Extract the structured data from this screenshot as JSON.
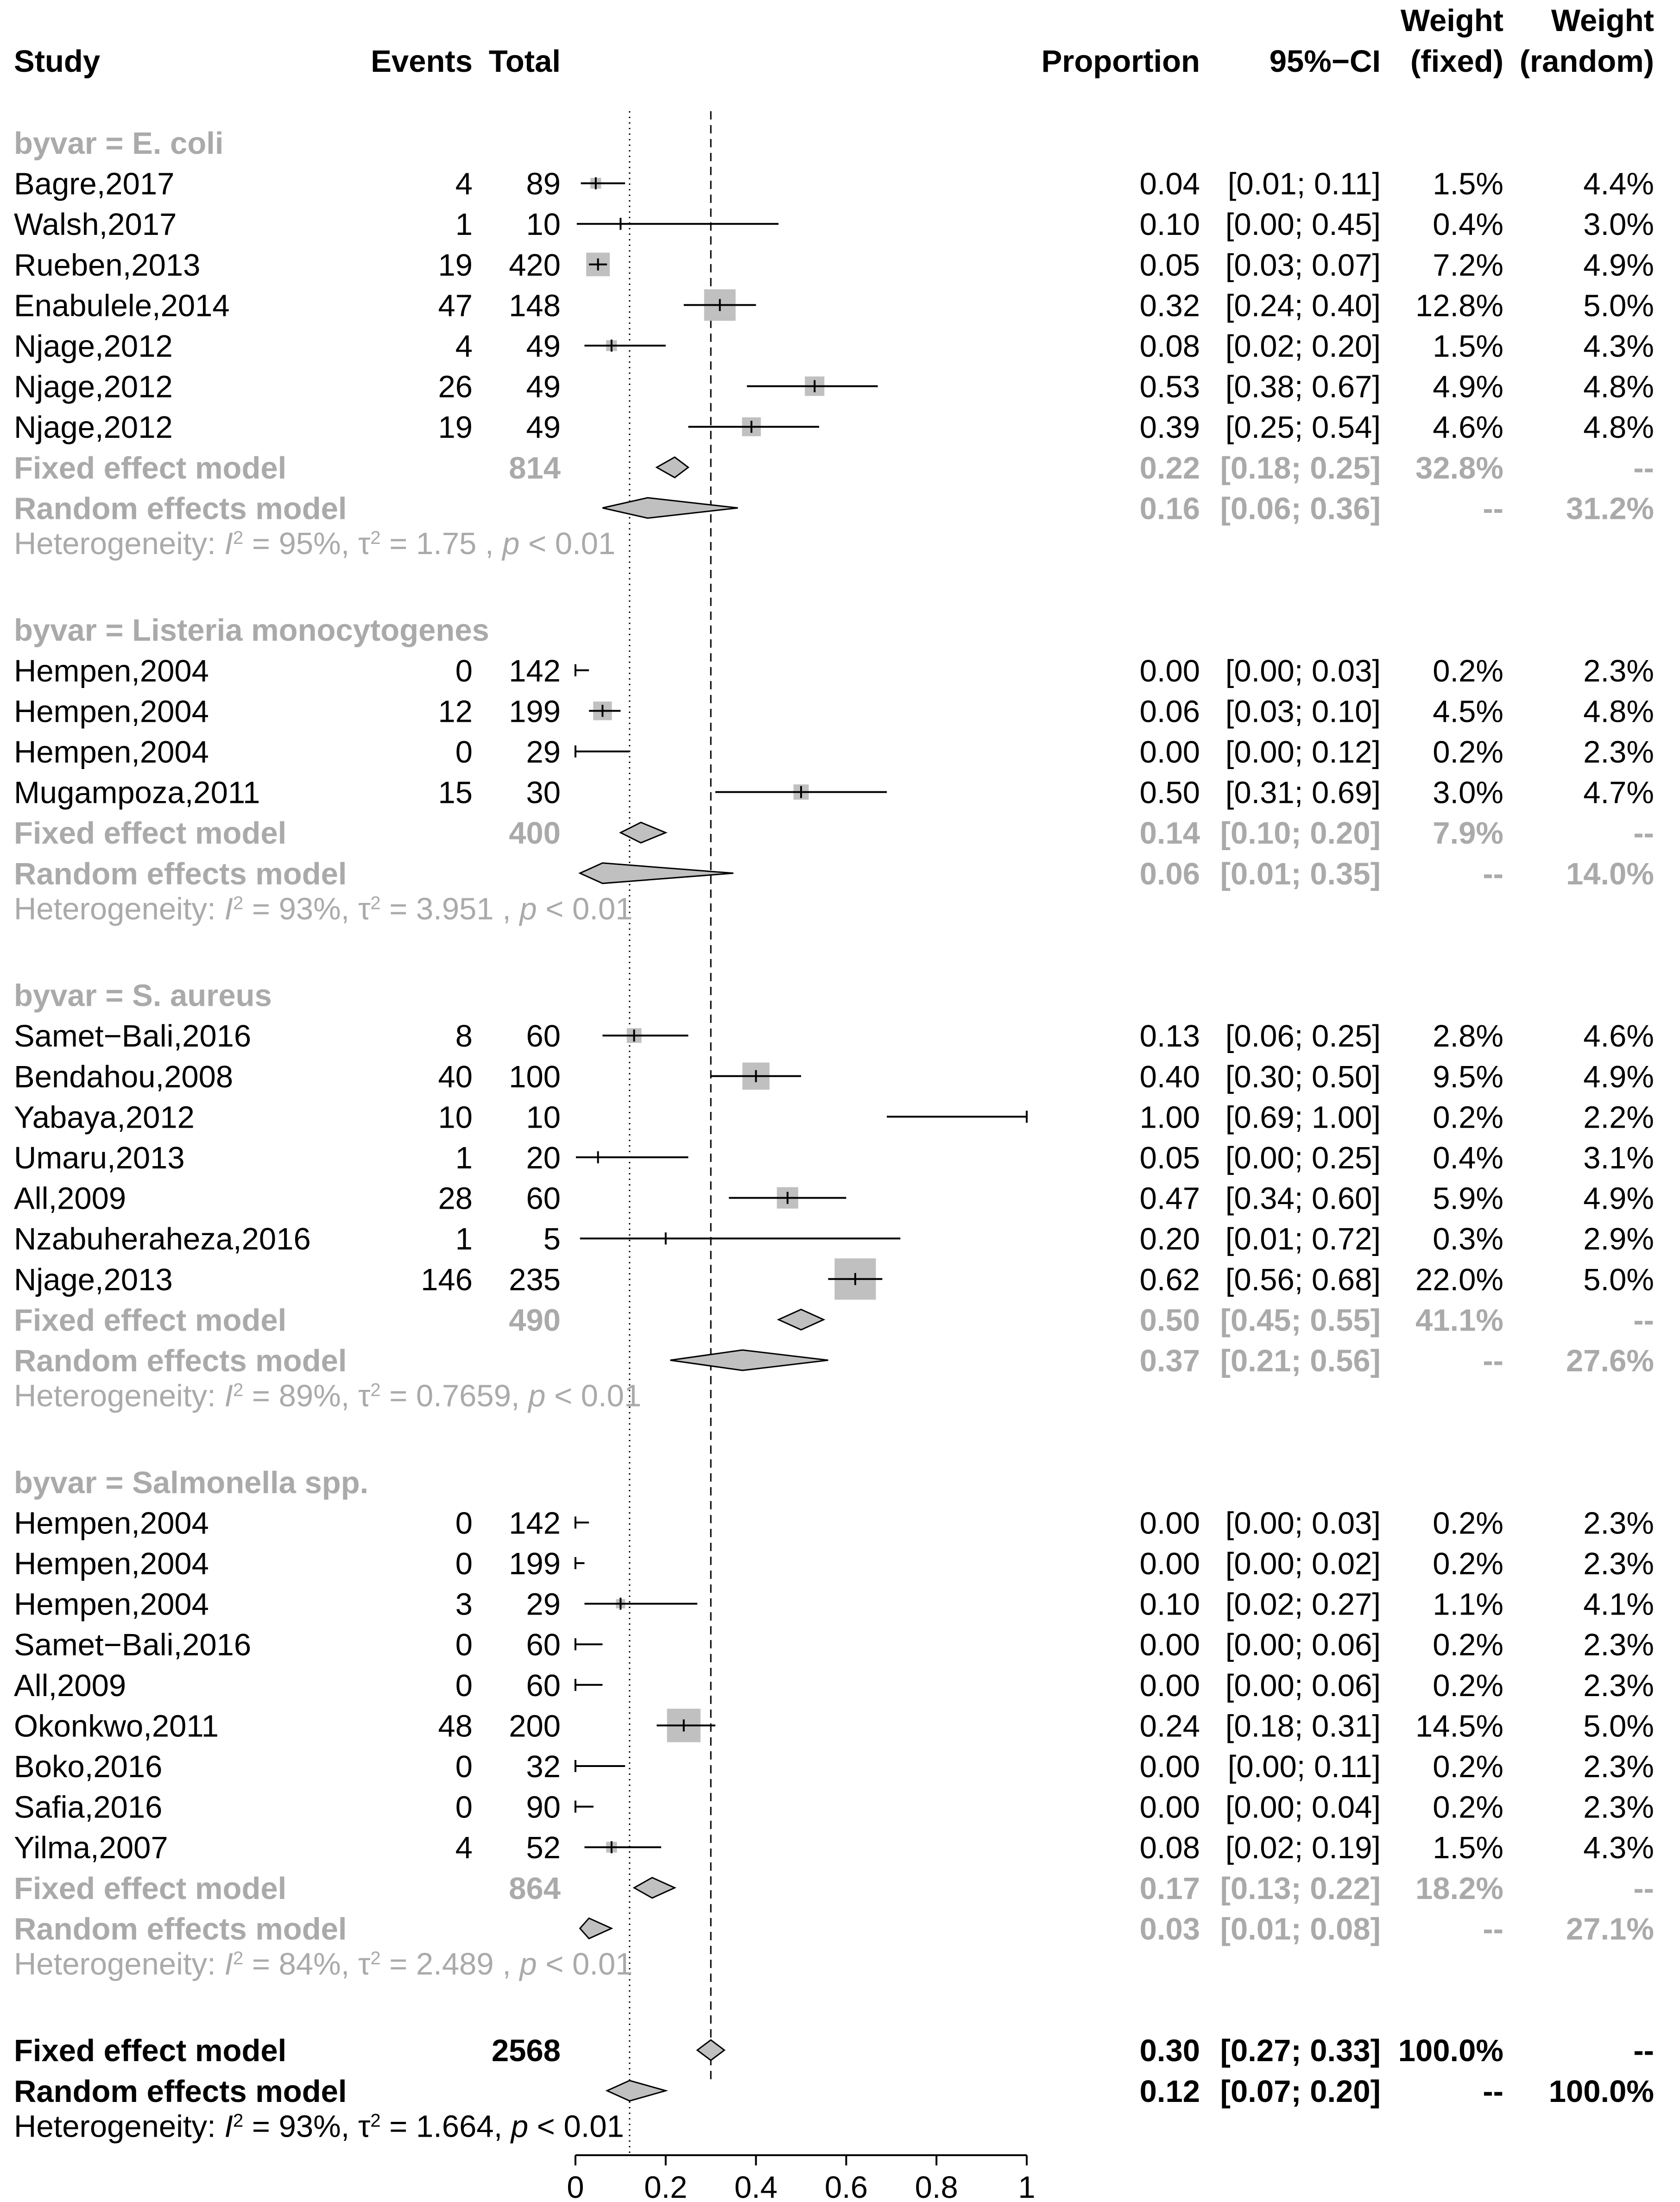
{
  "chart_data": {
    "type": "forest",
    "headers": {
      "study": "Study",
      "events": "Events",
      "total": "Total",
      "proportion": "Proportion",
      "ci": "95%−CI",
      "weight_fixed_1": "Weight",
      "weight_fixed_2": "(fixed)",
      "weight_random_1": "Weight",
      "weight_random_2": "(random)"
    },
    "x_axis": {
      "min": 0,
      "max": 1,
      "ticks": [
        0,
        0.2,
        0.4,
        0.6,
        0.8,
        1
      ],
      "tick_labels": [
        "0",
        "0.2",
        "0.4",
        "0.6",
        "0.8",
        "1"
      ]
    },
    "reference_lines": {
      "fixed_overall": 0.3,
      "random_overall": 0.12
    },
    "colors": {
      "subgroup_text": "#aaaaaa",
      "square": "#c0c0c0",
      "diamond_fill": "#c0c0c0",
      "line": "#000000"
    },
    "groups": [
      {
        "label": "byvar = E. coli",
        "studies": [
          {
            "study": "Bagre,2017",
            "events": "4",
            "total": "89",
            "est": 0.045,
            "lo": 0.012,
            "hi": 0.11,
            "prop": "0.04",
            "ci": "[0.01; 0.11]",
            "wf": "1.5%",
            "wr": "4.4%",
            "weight": 1.5
          },
          {
            "study": "Walsh,2017",
            "events": "1",
            "total": "10",
            "est": 0.1,
            "lo": 0.003,
            "hi": 0.45,
            "prop": "0.10",
            "ci": "[0.00; 0.45]",
            "wf": "0.4%",
            "wr": "3.0%",
            "weight": 0.4
          },
          {
            "study": "Rueben,2013",
            "events": "19",
            "total": "420",
            "est": 0.05,
            "lo": 0.03,
            "hi": 0.07,
            "prop": "0.05",
            "ci": "[0.03; 0.07]",
            "wf": "7.2%",
            "wr": "4.9%",
            "weight": 7.2
          },
          {
            "study": "Enabulele,2014",
            "events": "47",
            "total": "148",
            "est": 0.32,
            "lo": 0.24,
            "hi": 0.4,
            "prop": "0.32",
            "ci": "[0.24; 0.40]",
            "wf": "12.8%",
            "wr": "5.0%",
            "weight": 12.8
          },
          {
            "study": "Njage,2012",
            "events": "4",
            "total": "49",
            "est": 0.08,
            "lo": 0.02,
            "hi": 0.2,
            "prop": "0.08",
            "ci": "[0.02; 0.20]",
            "wf": "1.5%",
            "wr": "4.3%",
            "weight": 1.5
          },
          {
            "study": "Njage,2012",
            "events": "26",
            "total": "49",
            "est": 0.53,
            "lo": 0.38,
            "hi": 0.67,
            "prop": "0.53",
            "ci": "[0.38; 0.67]",
            "wf": "4.9%",
            "wr": "4.8%",
            "weight": 4.9
          },
          {
            "study": "Njage,2012",
            "events": "19",
            "total": "49",
            "est": 0.39,
            "lo": 0.25,
            "hi": 0.54,
            "prop": "0.39",
            "ci": "[0.25; 0.54]",
            "wf": "4.6%",
            "wr": "4.8%",
            "weight": 4.6
          }
        ],
        "fixed": {
          "label": "Fixed effect model",
          "total": "814",
          "est": 0.22,
          "lo": 0.18,
          "hi": 0.25,
          "prop": "0.22",
          "ci": "[0.18; 0.25]",
          "wf": "32.8%",
          "wr": "--"
        },
        "random": {
          "label": "Random effects model",
          "est": 0.16,
          "lo": 0.06,
          "hi": 0.36,
          "prop": "0.16",
          "ci": "[0.06; 0.36]",
          "wf": "--",
          "wr": "31.2%"
        },
        "het": {
          "prefix": "Heterogeneity: ",
          "i2_sym": "I",
          "i2_sup": "2",
          "i2_val": " = 95%, ",
          "tau_sym": "τ",
          "tau_sup": "2",
          "tau_val": " = 1.75 , ",
          "p_sym": "p",
          "p_val": " < 0.01"
        }
      },
      {
        "label": "byvar = Listeria monocytogenes",
        "studies": [
          {
            "study": "Hempen,2004",
            "events": "0",
            "total": "142",
            "est": 0.0,
            "lo": 0.0,
            "hi": 0.03,
            "prop": "0.00",
            "ci": "[0.00; 0.03]",
            "wf": "0.2%",
            "wr": "2.3%",
            "weight": 0.2
          },
          {
            "study": "Hempen,2004",
            "events": "12",
            "total": "199",
            "est": 0.06,
            "lo": 0.03,
            "hi": 0.1,
            "prop": "0.06",
            "ci": "[0.03; 0.10]",
            "wf": "4.5%",
            "wr": "4.8%",
            "weight": 4.5
          },
          {
            "study": "Hempen,2004",
            "events": "0",
            "total": "29",
            "est": 0.0,
            "lo": 0.0,
            "hi": 0.12,
            "prop": "0.00",
            "ci": "[0.00; 0.12]",
            "wf": "0.2%",
            "wr": "2.3%",
            "weight": 0.2
          },
          {
            "study": "Mugampoza,2011",
            "events": "15",
            "total": "30",
            "est": 0.5,
            "lo": 0.31,
            "hi": 0.69,
            "prop": "0.50",
            "ci": "[0.31; 0.69]",
            "wf": "3.0%",
            "wr": "4.7%",
            "weight": 3.0
          }
        ],
        "fixed": {
          "label": "Fixed effect model",
          "total": "400",
          "est": 0.145,
          "lo": 0.1,
          "hi": 0.2,
          "prop": "0.14",
          "ci": "[0.10; 0.20]",
          "wf": "7.9%",
          "wr": "--"
        },
        "random": {
          "label": "Random effects model",
          "est": 0.06,
          "lo": 0.01,
          "hi": 0.35,
          "prop": "0.06",
          "ci": "[0.01; 0.35]",
          "wf": "--",
          "wr": "14.0%"
        },
        "het": {
          "prefix": "Heterogeneity: ",
          "i2_sym": "I",
          "i2_sup": "2",
          "i2_val": " = 93%, ",
          "tau_sym": "τ",
          "tau_sup": "2",
          "tau_val": " = 3.951 , ",
          "p_sym": "p",
          "p_val": " < 0.01"
        }
      },
      {
        "label": "byvar = S. aureus",
        "studies": [
          {
            "study": "Samet−Bali,2016",
            "events": "8",
            "total": "60",
            "est": 0.13,
            "lo": 0.06,
            "hi": 0.25,
            "prop": "0.13",
            "ci": "[0.06; 0.25]",
            "wf": "2.8%",
            "wr": "4.6%",
            "weight": 2.8
          },
          {
            "study": "Bendahou,2008",
            "events": "40",
            "total": "100",
            "est": 0.4,
            "lo": 0.3,
            "hi": 0.5,
            "prop": "0.40",
            "ci": "[0.30; 0.50]",
            "wf": "9.5%",
            "wr": "4.9%",
            "weight": 9.5
          },
          {
            "study": "Yabaya,2012",
            "events": "10",
            "total": "10",
            "est": 1.0,
            "lo": 0.69,
            "hi": 1.0,
            "prop": "1.00",
            "ci": "[0.69; 1.00]",
            "wf": "0.2%",
            "wr": "2.2%",
            "weight": 0.2
          },
          {
            "study": "Umaru,2013",
            "events": "1",
            "total": "20",
            "est": 0.05,
            "lo": 0.001,
            "hi": 0.25,
            "prop": "0.05",
            "ci": "[0.00; 0.25]",
            "wf": "0.4%",
            "wr": "3.1%",
            "weight": 0.4
          },
          {
            "study": "All,2009",
            "events": "28",
            "total": "60",
            "est": 0.47,
            "lo": 0.34,
            "hi": 0.6,
            "prop": "0.47",
            "ci": "[0.34; 0.60]",
            "wf": "5.9%",
            "wr": "4.9%",
            "weight": 5.9
          },
          {
            "study": "Nzabuheraheza,2016",
            "events": "1",
            "total": "5",
            "est": 0.2,
            "lo": 0.01,
            "hi": 0.72,
            "prop": "0.20",
            "ci": "[0.01; 0.72]",
            "wf": "0.3%",
            "wr": "2.9%",
            "weight": 0.3
          },
          {
            "study": "Njage,2013",
            "events": "146",
            "total": "235",
            "est": 0.62,
            "lo": 0.56,
            "hi": 0.68,
            "prop": "0.62",
            "ci": "[0.56; 0.68]",
            "wf": "22.0%",
            "wr": "5.0%",
            "weight": 22.0
          }
        ],
        "fixed": {
          "label": "Fixed effect model",
          "total": "490",
          "est": 0.5,
          "lo": 0.45,
          "hi": 0.55,
          "prop": "0.50",
          "ci": "[0.45; 0.55]",
          "wf": "41.1%",
          "wr": "--"
        },
        "random": {
          "label": "Random effects model",
          "est": 0.37,
          "lo": 0.21,
          "hi": 0.56,
          "prop": "0.37",
          "ci": "[0.21; 0.56]",
          "wf": "--",
          "wr": "27.6%"
        },
        "het": {
          "prefix": "Heterogeneity: ",
          "i2_sym": "I",
          "i2_sup": "2",
          "i2_val": " = 89%, ",
          "tau_sym": "τ",
          "tau_sup": "2",
          "tau_val": " = 0.7659, ",
          "p_sym": "p",
          "p_val": " < 0.01"
        }
      },
      {
        "label": "byvar = Salmonella spp.",
        "studies": [
          {
            "study": "Hempen,2004",
            "events": "0",
            "total": "142",
            "est": 0.0,
            "lo": 0.0,
            "hi": 0.03,
            "prop": "0.00",
            "ci": "[0.00; 0.03]",
            "wf": "0.2%",
            "wr": "2.3%",
            "weight": 0.2
          },
          {
            "study": "Hempen,2004",
            "events": "0",
            "total": "199",
            "est": 0.0,
            "lo": 0.0,
            "hi": 0.02,
            "prop": "0.00",
            "ci": "[0.00; 0.02]",
            "wf": "0.2%",
            "wr": "2.3%",
            "weight": 0.2
          },
          {
            "study": "Hempen,2004",
            "events": "3",
            "total": "29",
            "est": 0.1,
            "lo": 0.02,
            "hi": 0.27,
            "prop": "0.10",
            "ci": "[0.02; 0.27]",
            "wf": "1.1%",
            "wr": "4.1%",
            "weight": 1.1
          },
          {
            "study": "Samet−Bali,2016",
            "events": "0",
            "total": "60",
            "est": 0.0,
            "lo": 0.0,
            "hi": 0.06,
            "prop": "0.00",
            "ci": "[0.00; 0.06]",
            "wf": "0.2%",
            "wr": "2.3%",
            "weight": 0.2
          },
          {
            "study": "All,2009",
            "events": "0",
            "total": "60",
            "est": 0.0,
            "lo": 0.0,
            "hi": 0.06,
            "prop": "0.00",
            "ci": "[0.00; 0.06]",
            "wf": "0.2%",
            "wr": "2.3%",
            "weight": 0.2
          },
          {
            "study": "Okonkwo,2011",
            "events": "48",
            "total": "200",
            "est": 0.24,
            "lo": 0.18,
            "hi": 0.31,
            "prop": "0.24",
            "ci": "[0.18; 0.31]",
            "wf": "14.5%",
            "wr": "5.0%",
            "weight": 14.5
          },
          {
            "study": "Boko,2016",
            "events": "0",
            "total": "32",
            "est": 0.0,
            "lo": 0.0,
            "hi": 0.11,
            "prop": "0.00",
            "ci": "[0.00; 0.11]",
            "wf": "0.2%",
            "wr": "2.3%",
            "weight": 0.2
          },
          {
            "study": "Safia,2016",
            "events": "0",
            "total": "90",
            "est": 0.0,
            "lo": 0.0,
            "hi": 0.04,
            "prop": "0.00",
            "ci": "[0.00; 0.04]",
            "wf": "0.2%",
            "wr": "2.3%",
            "weight": 0.2
          },
          {
            "study": "Yilma,2007",
            "events": "4",
            "total": "52",
            "est": 0.08,
            "lo": 0.02,
            "hi": 0.19,
            "prop": "0.08",
            "ci": "[0.02; 0.19]",
            "wf": "1.5%",
            "wr": "4.3%",
            "weight": 1.5
          }
        ],
        "fixed": {
          "label": "Fixed effect model",
          "total": "864",
          "est": 0.17,
          "lo": 0.13,
          "hi": 0.22,
          "prop": "0.17",
          "ci": "[0.13; 0.22]",
          "wf": "18.2%",
          "wr": "--"
        },
        "random": {
          "label": "Random effects model",
          "est": 0.03,
          "lo": 0.01,
          "hi": 0.08,
          "prop": "0.03",
          "ci": "[0.01; 0.08]",
          "wf": "--",
          "wr": "27.1%"
        },
        "het": {
          "prefix": "Heterogeneity: ",
          "i2_sym": "I",
          "i2_sup": "2",
          "i2_val": " = 84%, ",
          "tau_sym": "τ",
          "tau_sup": "2",
          "tau_val": " = 2.489 , ",
          "p_sym": "p",
          "p_val": " < 0.01"
        }
      }
    ],
    "overall": {
      "fixed": {
        "label": "Fixed effect model",
        "total": "2568",
        "est": 0.3,
        "lo": 0.27,
        "hi": 0.33,
        "prop": "0.30",
        "ci": "[0.27; 0.33]",
        "wf": "100.0%",
        "wr": "--"
      },
      "random": {
        "label": "Random effects model",
        "est": 0.12,
        "lo": 0.07,
        "hi": 0.2,
        "prop": "0.12",
        "ci": "[0.07; 0.20]",
        "wf": "--",
        "wr": "100.0%"
      },
      "het": {
        "prefix": "Heterogeneity: ",
        "i2_sym": "I",
        "i2_sup": "2",
        "i2_val": " = 93%, ",
        "tau_sym": "τ",
        "tau_sup": "2",
        "tau_val": " = 1.664, ",
        "p_sym": "p",
        "p_val": " < 0.01"
      }
    }
  }
}
